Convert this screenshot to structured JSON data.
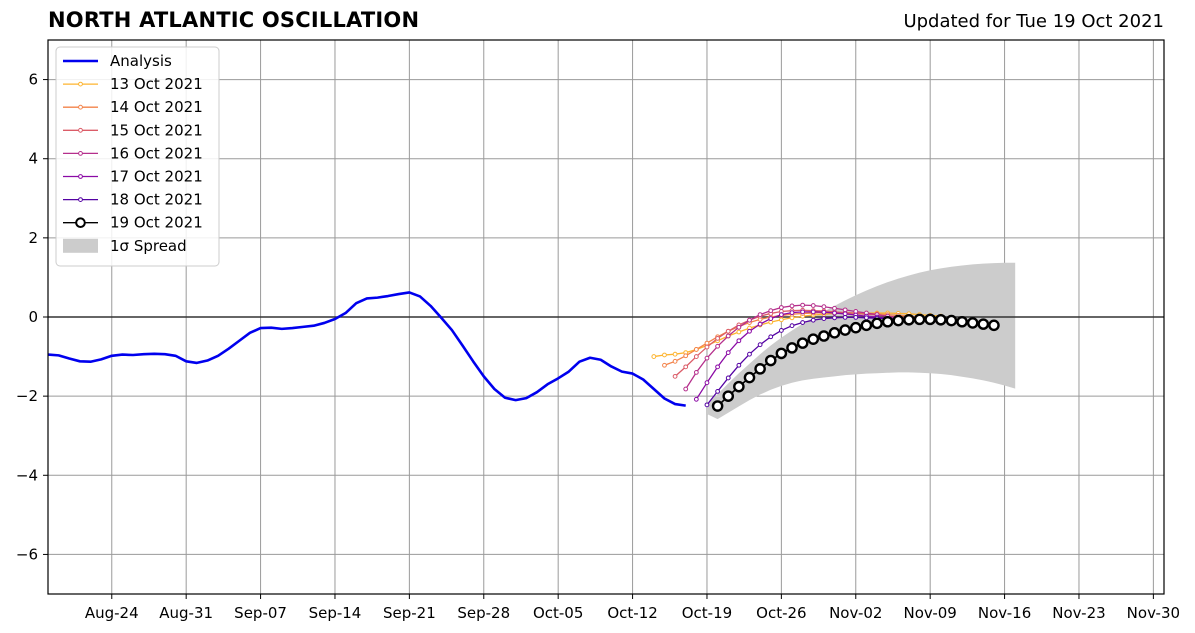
{
  "title": "NORTH ATLANTIC OSCILLATION",
  "subtitle": "Updated for Tue 19 Oct 2021",
  "colors": {
    "analysis": "#0000ee",
    "spread": "#cccccc",
    "grid": "#9a9a9a",
    "zero_line": "#333333",
    "forecast_13": "#fdb42f",
    "forecast_14": "#f3834a",
    "forecast_15": "#db5c68",
    "forecast_16": "#b52f8c",
    "forecast_17": "#8b0aa5",
    "forecast_18": "#5402a3",
    "forecast_19": "#000000"
  },
  "chart_data": {
    "type": "line",
    "title": "NORTH ATLANTIC OSCILLATION",
    "subtitle": "Updated for Tue 19 Oct 2021",
    "xlabel": "",
    "ylabel": "",
    "xlim": [
      "2021-08-18",
      "2021-12-01"
    ],
    "ylim": [
      -7,
      7
    ],
    "grid": true,
    "legend_position": "top-left",
    "xticks": [
      "2021-08-24",
      "2021-08-31",
      "2021-09-07",
      "2021-09-14",
      "2021-09-21",
      "2021-09-28",
      "2021-10-05",
      "2021-10-12",
      "2021-10-19",
      "2021-10-26",
      "2021-11-02",
      "2021-11-09",
      "2021-11-16",
      "2021-11-23",
      "2021-11-30"
    ],
    "xtick_labels": [
      "Aug-24",
      "Aug-31",
      "Sep-07",
      "Sep-14",
      "Sep-21",
      "Sep-28",
      "Oct-05",
      "Oct-12",
      "Oct-19",
      "Oct-26",
      "Nov-02",
      "Nov-09",
      "Nov-16",
      "Nov-23",
      "Nov-30"
    ],
    "yticks": [
      -6,
      -4,
      -2,
      0,
      2,
      4,
      6
    ],
    "ytick_labels": [
      "−6",
      "−4",
      "−2",
      "0",
      "2",
      "4",
      "6"
    ],
    "analysis": {
      "name": "Analysis",
      "start": "2021-08-18",
      "values": [
        -0.95,
        -0.97,
        -1.05,
        -1.12,
        -1.13,
        -1.07,
        -0.98,
        -0.95,
        -0.96,
        -0.94,
        -0.93,
        -0.94,
        -0.98,
        -1.12,
        -1.16,
        -1.1,
        -0.98,
        -0.8,
        -0.6,
        -0.4,
        -0.28,
        -0.27,
        -0.3,
        -0.28,
        -0.25,
        -0.22,
        -0.15,
        -0.05,
        0.1,
        0.35,
        0.47,
        0.49,
        0.53,
        0.58,
        0.62,
        0.52,
        0.28,
        -0.02,
        -0.33,
        -0.72,
        -1.12,
        -1.5,
        -1.82,
        -2.04,
        -2.1,
        -2.05,
        -1.9,
        -1.7,
        -1.55,
        -1.38,
        -1.13,
        -1.03,
        -1.08,
        -1.25,
        -1.38,
        -1.43,
        -1.58,
        -1.82,
        -2.06,
        -2.2,
        -2.24
      ]
    },
    "forecasts": [
      {
        "name": "13 Oct 2021",
        "start": "2021-10-14",
        "values": [
          -1.0,
          -0.96,
          -0.94,
          -0.9,
          -0.82,
          -0.72,
          -0.6,
          -0.48,
          -0.38,
          -0.28,
          -0.2,
          -0.13,
          -0.07,
          -0.02,
          0.02,
          0.05,
          0.07,
          0.09,
          0.1,
          0.1,
          0.1,
          0.1,
          0.1,
          0.09,
          0.08,
          0.06,
          0.04,
          0.02
        ]
      },
      {
        "name": "14 Oct 2021",
        "start": "2021-10-15",
        "values": [
          -1.22,
          -1.12,
          -0.98,
          -0.82,
          -0.66,
          -0.5,
          -0.36,
          -0.24,
          -0.14,
          -0.06,
          0.0,
          0.04,
          0.07,
          0.09,
          0.1,
          0.11,
          0.11,
          0.11,
          0.1,
          0.09,
          0.08,
          0.06,
          0.04,
          0.02,
          0.0,
          -0.02,
          -0.04
        ]
      },
      {
        "name": "15 Oct 2021",
        "start": "2021-10-16",
        "values": [
          -1.5,
          -1.26,
          -1.0,
          -0.76,
          -0.54,
          -0.36,
          -0.2,
          -0.08,
          0.02,
          0.09,
          0.14,
          0.16,
          0.17,
          0.16,
          0.15,
          0.13,
          0.11,
          0.09,
          0.07,
          0.05,
          0.02,
          0.0,
          -0.03,
          -0.05,
          -0.07,
          -0.09
        ]
      },
      {
        "name": "16 Oct 2021",
        "start": "2021-10-17",
        "values": [
          -1.82,
          -1.4,
          -1.04,
          -0.74,
          -0.48,
          -0.26,
          -0.08,
          0.06,
          0.16,
          0.24,
          0.28,
          0.3,
          0.29,
          0.26,
          0.22,
          0.18,
          0.14,
          0.1,
          0.06,
          0.02,
          -0.02,
          -0.05,
          -0.08,
          -0.1,
          -0.12
        ]
      },
      {
        "name": "17 Oct 2021",
        "start": "2021-10-18",
        "values": [
          -2.08,
          -1.66,
          -1.26,
          -0.9,
          -0.6,
          -0.36,
          -0.18,
          -0.04,
          0.06,
          0.11,
          0.13,
          0.13,
          0.12,
          0.1,
          0.08,
          0.05,
          0.02,
          0.0,
          -0.03,
          -0.05,
          -0.07,
          -0.09,
          -0.11,
          -0.12
        ]
      },
      {
        "name": "18 Oct 2021",
        "start": "2021-10-19",
        "values": [
          -2.22,
          -1.88,
          -1.54,
          -1.22,
          -0.94,
          -0.7,
          -0.5,
          -0.34,
          -0.22,
          -0.14,
          -0.08,
          -0.04,
          -0.02,
          -0.01,
          -0.01,
          -0.02,
          -0.03,
          -0.04,
          -0.05,
          -0.06,
          -0.07,
          -0.08,
          -0.09
        ]
      },
      {
        "name": "19 Oct 2021",
        "start": "2021-10-20",
        "values": [
          -2.25,
          -2.0,
          -1.76,
          -1.53,
          -1.31,
          -1.1,
          -0.92,
          -0.78,
          -0.66,
          -0.56,
          -0.48,
          -0.4,
          -0.33,
          -0.27,
          -0.21,
          -0.16,
          -0.12,
          -0.09,
          -0.07,
          -0.06,
          -0.06,
          -0.07,
          -0.09,
          -0.12,
          -0.15,
          -0.18,
          -0.21
        ]
      }
    ],
    "spread": {
      "name": "1σ Spread",
      "start": "2021-10-19",
      "upper": [
        -2.2,
        -1.95,
        -1.68,
        -1.42,
        -1.18,
        -0.94,
        -0.72,
        -0.52,
        -0.34,
        -0.17,
        -0.01,
        0.14,
        0.28,
        0.42,
        0.55,
        0.67,
        0.78,
        0.88,
        0.97,
        1.05,
        1.12,
        1.18,
        1.23,
        1.27,
        1.3,
        1.33,
        1.35,
        1.36,
        1.37,
        1.37
      ],
      "lower": [
        -2.45,
        -2.58,
        -2.42,
        -2.26,
        -2.1,
        -1.96,
        -1.84,
        -1.74,
        -1.66,
        -1.6,
        -1.56,
        -1.53,
        -1.5,
        -1.47,
        -1.45,
        -1.43,
        -1.42,
        -1.41,
        -1.4,
        -1.4,
        -1.41,
        -1.42,
        -1.44,
        -1.47,
        -1.51,
        -1.55,
        -1.6,
        -1.66,
        -1.73,
        -1.81
      ]
    }
  }
}
